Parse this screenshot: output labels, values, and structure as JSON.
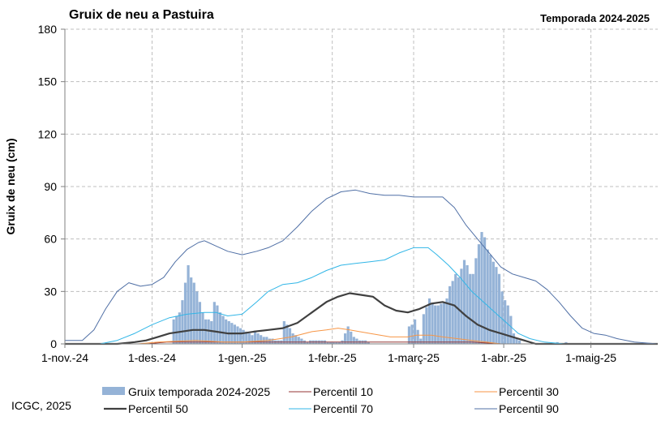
{
  "chart_data": {
    "type": "bar+line",
    "title": "Gruix de neu a Pastuira",
    "subtitle": "Temporada 2024-2025",
    "ylabel": "Gruix de neu (cm)",
    "xlabel": "",
    "ylim": [
      0,
      180
    ],
    "yticks": [
      0,
      30,
      60,
      90,
      120,
      150,
      180
    ],
    "xlim": [
      0,
      204
    ],
    "x_unit": "day",
    "x_ticks": [
      {
        "day": 0,
        "label": "1-nov.-24"
      },
      {
        "day": 30,
        "label": "1-des.-24"
      },
      {
        "day": 61,
        "label": "1-gen.-25"
      },
      {
        "day": 92,
        "label": "1-febr.-25"
      },
      {
        "day": 120,
        "label": "1-març-25"
      },
      {
        "day": 151,
        "label": "1-abr.-25"
      },
      {
        "day": 181,
        "label": "1-maig-25"
      }
    ],
    "grid": true,
    "legend_position": "bottom",
    "bars": {
      "name": "Gruix temporada 2024-2025",
      "color": "#95b3d7",
      "points": [
        [
          37,
          14
        ],
        [
          38,
          16
        ],
        [
          39,
          18
        ],
        [
          40,
          25
        ],
        [
          41,
          35
        ],
        [
          42,
          45
        ],
        [
          43,
          38
        ],
        [
          44,
          35
        ],
        [
          45,
          30
        ],
        [
          46,
          24
        ],
        [
          47,
          18
        ],
        [
          48,
          14
        ],
        [
          49,
          14
        ],
        [
          50,
          13
        ],
        [
          51,
          24
        ],
        [
          52,
          22
        ],
        [
          53,
          18
        ],
        [
          54,
          16
        ],
        [
          55,
          14
        ],
        [
          56,
          13
        ],
        [
          57,
          12
        ],
        [
          58,
          11
        ],
        [
          59,
          10
        ],
        [
          60,
          9
        ],
        [
          61,
          8
        ],
        [
          62,
          7
        ],
        [
          63,
          6
        ],
        [
          64,
          5
        ],
        [
          65,
          7
        ],
        [
          66,
          6
        ],
        [
          67,
          5
        ],
        [
          68,
          4
        ],
        [
          69,
          4
        ],
        [
          70,
          3
        ],
        [
          71,
          3
        ],
        [
          72,
          2
        ],
        [
          73,
          2
        ],
        [
          74,
          2
        ],
        [
          75,
          13
        ],
        [
          76,
          11
        ],
        [
          77,
          9
        ],
        [
          78,
          6
        ],
        [
          79,
          5
        ],
        [
          80,
          4
        ],
        [
          81,
          3
        ],
        [
          82,
          2
        ],
        [
          83,
          1
        ],
        [
          84,
          2
        ],
        [
          85,
          2
        ],
        [
          86,
          2
        ],
        [
          87,
          2
        ],
        [
          88,
          2
        ],
        [
          89,
          2
        ],
        [
          90,
          1
        ],
        [
          91,
          1
        ],
        [
          92,
          1
        ],
        [
          93,
          1
        ],
        [
          94,
          1
        ],
        [
          95,
          2
        ],
        [
          96,
          6
        ],
        [
          97,
          10
        ],
        [
          98,
          7
        ],
        [
          99,
          4
        ],
        [
          100,
          3
        ],
        [
          101,
          2
        ],
        [
          102,
          2
        ],
        [
          103,
          2
        ],
        [
          104,
          1
        ],
        [
          118,
          10
        ],
        [
          119,
          11
        ],
        [
          120,
          14
        ],
        [
          121,
          8
        ],
        [
          122,
          3
        ],
        [
          123,
          17
        ],
        [
          124,
          21
        ],
        [
          125,
          26
        ],
        [
          126,
          23
        ],
        [
          127,
          22
        ],
        [
          128,
          22
        ],
        [
          129,
          23
        ],
        [
          130,
          24
        ],
        [
          131,
          26
        ],
        [
          132,
          33
        ],
        [
          133,
          36
        ],
        [
          134,
          40
        ],
        [
          135,
          38
        ],
        [
          136,
          43
        ],
        [
          137,
          48
        ],
        [
          138,
          45
        ],
        [
          139,
          40
        ],
        [
          140,
          40
        ],
        [
          141,
          49
        ],
        [
          142,
          57
        ],
        [
          143,
          64
        ],
        [
          144,
          61
        ],
        [
          145,
          54
        ],
        [
          146,
          51
        ],
        [
          147,
          47
        ],
        [
          148,
          44
        ],
        [
          149,
          40
        ],
        [
          150,
          30
        ],
        [
          151,
          25
        ],
        [
          152,
          22
        ],
        [
          153,
          16
        ],
        [
          154,
          6
        ],
        [
          155,
          3
        ],
        [
          156,
          2
        ],
        [
          169,
          1
        ],
        [
          172,
          1
        ]
      ]
    },
    "series": [
      {
        "name": "Percentil 10",
        "color": "#943634",
        "points": [
          [
            0,
            0
          ],
          [
            28,
            0
          ],
          [
            35,
            1
          ],
          [
            45,
            1
          ],
          [
            61,
            1
          ],
          [
            80,
            1
          ],
          [
            90,
            1
          ],
          [
            100,
            1
          ],
          [
            120,
            1
          ],
          [
            140,
            1
          ],
          [
            150,
            0
          ],
          [
            204,
            0
          ]
        ]
      },
      {
        "name": "Percentil 30",
        "color": "#f79646",
        "points": [
          [
            0,
            0
          ],
          [
            25,
            0
          ],
          [
            32,
            1
          ],
          [
            45,
            2
          ],
          [
            55,
            1
          ],
          [
            61,
            1
          ],
          [
            70,
            2
          ],
          [
            78,
            4
          ],
          [
            85,
            7
          ],
          [
            90,
            8
          ],
          [
            94,
            9
          ],
          [
            98,
            8
          ],
          [
            105,
            6
          ],
          [
            112,
            4
          ],
          [
            118,
            4
          ],
          [
            121,
            5
          ],
          [
            126,
            5
          ],
          [
            130,
            4
          ],
          [
            135,
            3
          ],
          [
            140,
            2
          ],
          [
            145,
            1
          ],
          [
            150,
            0
          ],
          [
            204,
            0
          ]
        ]
      },
      {
        "name": "Percentil 50",
        "color": "#404040",
        "points": [
          [
            0,
            0
          ],
          [
            18,
            0
          ],
          [
            24,
            1
          ],
          [
            28,
            2
          ],
          [
            32,
            4
          ],
          [
            36,
            6
          ],
          [
            40,
            7
          ],
          [
            44,
            8
          ],
          [
            48,
            8
          ],
          [
            52,
            7
          ],
          [
            56,
            6
          ],
          [
            61,
            6
          ],
          [
            65,
            7
          ],
          [
            70,
            8
          ],
          [
            75,
            9
          ],
          [
            80,
            12
          ],
          [
            85,
            18
          ],
          [
            90,
            24
          ],
          [
            94,
            27
          ],
          [
            98,
            29
          ],
          [
            102,
            28
          ],
          [
            106,
            27
          ],
          [
            110,
            22
          ],
          [
            114,
            19
          ],
          [
            118,
            18
          ],
          [
            122,
            20
          ],
          [
            126,
            23
          ],
          [
            130,
            24
          ],
          [
            134,
            22
          ],
          [
            138,
            16
          ],
          [
            142,
            11
          ],
          [
            146,
            8
          ],
          [
            150,
            6
          ],
          [
            154,
            4
          ],
          [
            158,
            2
          ],
          [
            162,
            0
          ],
          [
            204,
            0
          ]
        ]
      },
      {
        "name": "Percentil 70",
        "color": "#31b6e7",
        "points": [
          [
            0,
            0
          ],
          [
            12,
            0
          ],
          [
            18,
            2
          ],
          [
            24,
            6
          ],
          [
            30,
            11
          ],
          [
            36,
            15
          ],
          [
            42,
            17
          ],
          [
            48,
            18
          ],
          [
            52,
            18
          ],
          [
            56,
            16
          ],
          [
            61,
            17
          ],
          [
            66,
            24
          ],
          [
            70,
            30
          ],
          [
            75,
            34
          ],
          [
            80,
            35
          ],
          [
            85,
            38
          ],
          [
            90,
            42
          ],
          [
            95,
            45
          ],
          [
            100,
            46
          ],
          [
            105,
            47
          ],
          [
            110,
            48
          ],
          [
            115,
            52
          ],
          [
            120,
            55
          ],
          [
            125,
            55
          ],
          [
            128,
            51
          ],
          [
            132,
            45
          ],
          [
            136,
            38
          ],
          [
            140,
            30
          ],
          [
            144,
            24
          ],
          [
            148,
            18
          ],
          [
            152,
            12
          ],
          [
            156,
            6
          ],
          [
            160,
            3
          ],
          [
            165,
            1
          ],
          [
            172,
            0
          ],
          [
            204,
            0
          ]
        ]
      },
      {
        "name": "Percentil 90",
        "color": "#4f6fa5",
        "points": [
          [
            0,
            2
          ],
          [
            6,
            2
          ],
          [
            10,
            8
          ],
          [
            14,
            20
          ],
          [
            18,
            30
          ],
          [
            22,
            35
          ],
          [
            26,
            33
          ],
          [
            30,
            34
          ],
          [
            34,
            38
          ],
          [
            38,
            47
          ],
          [
            42,
            54
          ],
          [
            46,
            58
          ],
          [
            48,
            59
          ],
          [
            52,
            56
          ],
          [
            56,
            53
          ],
          [
            61,
            51
          ],
          [
            66,
            53
          ],
          [
            70,
            55
          ],
          [
            75,
            59
          ],
          [
            80,
            67
          ],
          [
            85,
            76
          ],
          [
            90,
            83
          ],
          [
            95,
            87
          ],
          [
            100,
            88
          ],
          [
            105,
            86
          ],
          [
            110,
            85
          ],
          [
            115,
            85
          ],
          [
            120,
            84
          ],
          [
            125,
            84
          ],
          [
            130,
            84
          ],
          [
            134,
            78
          ],
          [
            138,
            68
          ],
          [
            142,
            60
          ],
          [
            146,
            52
          ],
          [
            150,
            44
          ],
          [
            154,
            40
          ],
          [
            158,
            38
          ],
          [
            162,
            36
          ],
          [
            166,
            31
          ],
          [
            170,
            24
          ],
          [
            174,
            16
          ],
          [
            178,
            9
          ],
          [
            182,
            6
          ],
          [
            186,
            5
          ],
          [
            190,
            3
          ],
          [
            196,
            1
          ],
          [
            204,
            0
          ]
        ]
      }
    ]
  },
  "footer": {
    "source": "ICGC, 2025"
  }
}
